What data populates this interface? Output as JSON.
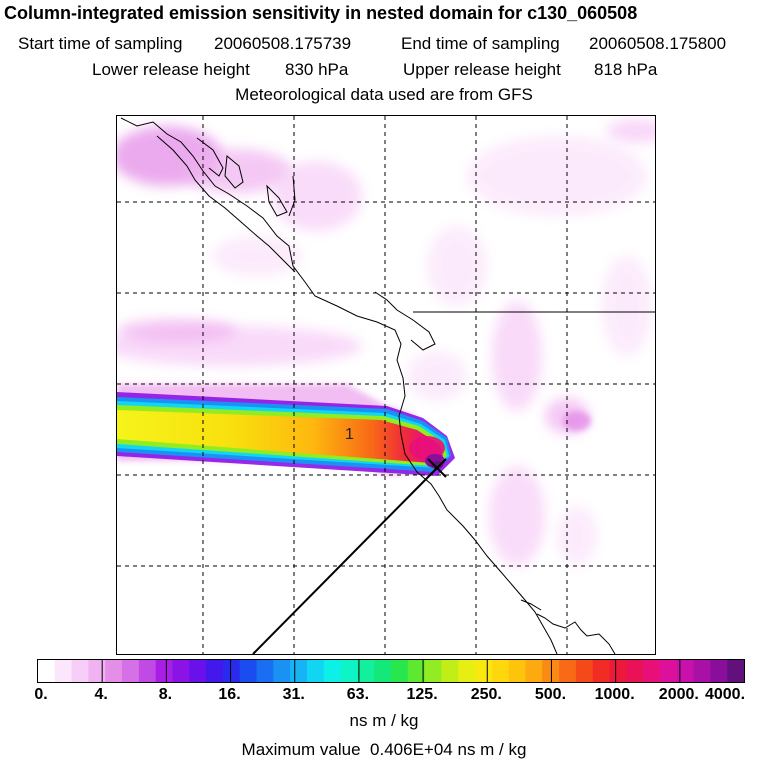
{
  "header": {
    "title": "Column-integrated emission sensitivity in nested domain for c130_060508",
    "start_label": "Start time of sampling",
    "start_value": "20060508.175739",
    "end_label": "End time of sampling",
    "end_value": "20060508.175800",
    "lower_label": "Lower release height",
    "lower_value": "830 hPa",
    "upper_label": "Upper release height",
    "upper_value": "818 hPa",
    "met_line": "Meteorological data used are from GFS"
  },
  "map": {
    "release_marker_label": "1",
    "release_marker_icon": "x-cross-icon",
    "grid": "dashed",
    "sensitivity_plume": {
      "direction": "westward from release point",
      "max_near": "release point"
    }
  },
  "colorbar": {
    "tick_labels": [
      "0.",
      "4.",
      "8.",
      "16.",
      "31.",
      "63.",
      "125.",
      "250.",
      "500.",
      "1000.",
      "2000.",
      "4000."
    ],
    "colors": [
      "#ffffff",
      "#fbe6fb",
      "#f7cef7",
      "#f0b2f0",
      "#e58ee8",
      "#d670e6",
      "#c24ae4",
      "#a81ee6",
      "#8a14e6",
      "#6a10ea",
      "#4218ec",
      "#2a2aec",
      "#1a4cf0",
      "#1a6ef2",
      "#1a92f4",
      "#16b4f4",
      "#10d6f2",
      "#0cf0e8",
      "#0ef4c6",
      "#12f09e",
      "#14e878",
      "#28e64e",
      "#5ee830",
      "#92ec22",
      "#c2ee18",
      "#e6ee12",
      "#f8e80e",
      "#fed80c",
      "#fec40c",
      "#fcaa10",
      "#fa8a14",
      "#f86a16",
      "#f44a1a",
      "#f02c24",
      "#ec1a3a",
      "#ea1256",
      "#e81078",
      "#dc109a",
      "#c810aa",
      "#a810a6",
      "#8a0e9c",
      "#62107c"
    ],
    "units": "ns m / kg"
  },
  "footer": {
    "max_label": "Maximum value",
    "max_value": "0.406E+04",
    "max_units": "ns m / kg"
  }
}
